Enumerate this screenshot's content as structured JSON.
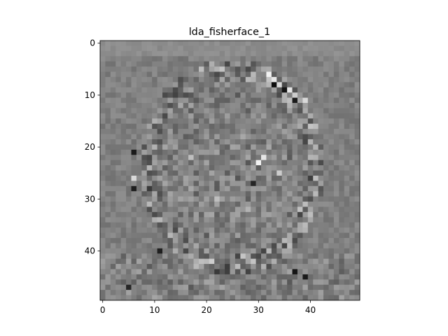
{
  "chart_data": {
    "type": "heatmap",
    "title": "lda_fisherface_1",
    "xlabel": "",
    "ylabel": "",
    "colormap": "gray",
    "grid": false,
    "rows": 50,
    "cols": 50,
    "xlim": [
      -0.5,
      49.5
    ],
    "ylim": [
      49.5,
      -0.5
    ],
    "x_ticks": [
      0,
      10,
      20,
      30,
      40
    ],
    "y_ticks": [
      0,
      10,
      20,
      30,
      40
    ],
    "x_tick_labels": [
      "0",
      "10",
      "20",
      "30",
      "40"
    ],
    "y_tick_labels": [
      "0",
      "10",
      "20",
      "30",
      "40"
    ],
    "face_outline": {
      "center": [
        25,
        24
      ],
      "radii": [
        16,
        19
      ]
    },
    "bright_features": [
      {
        "x": 32,
        "y": 6,
        "value": 0.95
      },
      {
        "x": 33,
        "y": 7,
        "value": 0.9
      },
      {
        "x": 34,
        "y": 8,
        "value": 0.85
      },
      {
        "x": 36,
        "y": 9,
        "value": 0.9
      },
      {
        "x": 37,
        "y": 10,
        "value": 0.8
      },
      {
        "x": 39,
        "y": 11,
        "value": 0.85
      },
      {
        "x": 30,
        "y": 23,
        "value": 0.95
      },
      {
        "x": 31,
        "y": 22,
        "value": 0.9
      },
      {
        "x": 17,
        "y": 22,
        "value": 0.75
      },
      {
        "x": 34,
        "y": 25,
        "value": 0.8
      },
      {
        "x": 6,
        "y": 26,
        "value": 0.85
      },
      {
        "x": 22,
        "y": 30,
        "value": 0.75
      },
      {
        "x": 28,
        "y": 32,
        "value": 0.7
      }
    ],
    "dark_features": [
      {
        "x": 33,
        "y": 8,
        "value": 0.05
      },
      {
        "x": 35,
        "y": 9,
        "value": 0.08
      },
      {
        "x": 37,
        "y": 11,
        "value": 0.1
      },
      {
        "x": 6,
        "y": 21,
        "value": 0.1
      },
      {
        "x": 6,
        "y": 28,
        "value": 0.12
      },
      {
        "x": 37,
        "y": 44,
        "value": 0.08
      },
      {
        "x": 39,
        "y": 45,
        "value": 0.1
      },
      {
        "x": 5,
        "y": 47,
        "value": 0.15
      },
      {
        "x": 11,
        "y": 40,
        "value": 0.12
      },
      {
        "x": 29,
        "y": 27,
        "value": 0.15
      }
    ],
    "background_value": 0.5,
    "top_band_value": 0.55
  }
}
